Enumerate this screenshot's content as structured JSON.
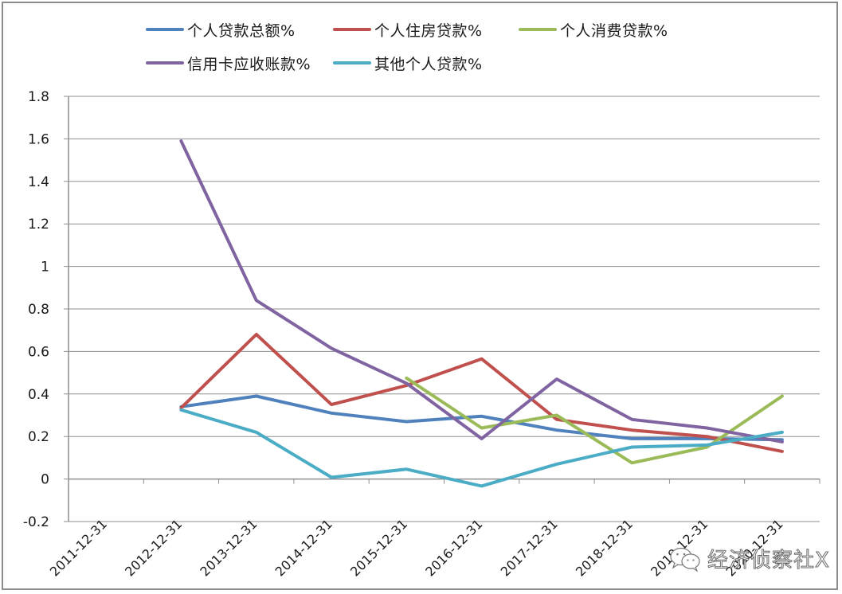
{
  "chart_data": {
    "type": "line",
    "title": "",
    "xlabel": "",
    "ylabel": "",
    "categories": [
      "2011-12-31",
      "2012-12-31",
      "2013-12-31",
      "2014-12-31",
      "2015-12-31",
      "2016-12-31",
      "2017-12-31",
      "2018-12-31",
      "2019-12-31",
      "2020-12-31"
    ],
    "ylim": [
      -0.2,
      1.8
    ],
    "yticks": [
      1.8,
      1.6,
      1.4,
      1.2,
      1,
      0.8,
      0.6,
      0.4,
      0.2,
      0,
      -0.2
    ],
    "ytick_labels": [
      "1.8",
      "1.6",
      "1.4",
      "1.2",
      "1",
      "0.8",
      "0.6",
      "0.4",
      "0.2",
      "0",
      "-0.2"
    ],
    "grid": true,
    "legend_position": "top",
    "series": [
      {
        "name": "个人贷款总额%",
        "color": "#4F81BD",
        "values": [
          null,
          0.34,
          0.39,
          0.31,
          0.27,
          0.295,
          0.23,
          0.19,
          0.19,
          0.185
        ]
      },
      {
        "name": "个人住房贷款%",
        "color": "#C0504D",
        "values": [
          null,
          0.335,
          0.68,
          0.35,
          0.44,
          0.565,
          0.28,
          0.23,
          0.2,
          0.13
        ]
      },
      {
        "name": "个人消费贷款%",
        "color": "#9BBB59",
        "values": [
          null,
          null,
          null,
          null,
          0.475,
          0.24,
          0.3,
          0.076,
          0.15,
          0.39
        ]
      },
      {
        "name": "信用卡应收账款%",
        "color": "#8064A2",
        "values": [
          null,
          1.59,
          0.84,
          0.615,
          0.45,
          0.19,
          0.47,
          0.28,
          0.24,
          0.175
        ]
      },
      {
        "name": "其他个人贷款%",
        "color": "#4BACC6",
        "values": [
          null,
          0.325,
          0.22,
          0.008,
          0.046,
          -0.033,
          0.07,
          0.15,
          0.16,
          0.22
        ]
      }
    ]
  },
  "watermark": {
    "icon": "wechat-icon",
    "text": "经济侦察社X"
  }
}
